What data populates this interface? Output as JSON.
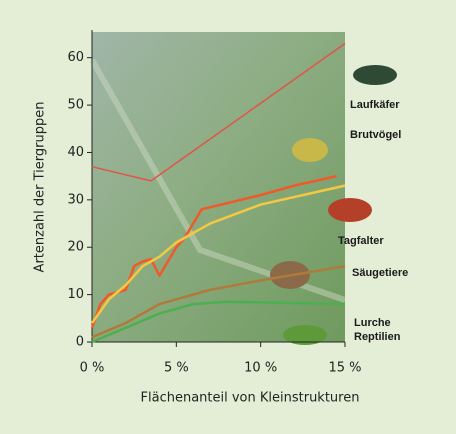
{
  "chart_data": {
    "type": "line",
    "x_label": "Flächenanteil von Kleinstrukturen",
    "y_label": "Artenzahl der Tiergruppen",
    "xlim": [
      0,
      15
    ],
    "ylim": [
      0,
      65
    ],
    "xticks": [
      {
        "value": 0,
        "label": "0 %"
      },
      {
        "value": 5,
        "label": "5 %"
      },
      {
        "value": 10,
        "label": "10 %"
      },
      {
        "value": 15,
        "label": "15 %"
      }
    ],
    "yticks": [
      0,
      10,
      20,
      30,
      40,
      50,
      60
    ],
    "series": [
      {
        "name": "Laufkäfer",
        "color": "#e0554a",
        "x": [
          0,
          3.5,
          15
        ],
        "values": [
          37,
          34,
          63
        ]
      },
      {
        "name": "Brutvögel",
        "color": "#f05a28",
        "x": [
          0,
          0.5,
          1,
          1.5,
          2,
          2.5,
          3,
          3.5,
          4,
          4.5,
          5,
          5.5,
          6,
          6.5,
          10,
          12,
          14.5
        ],
        "values": [
          3,
          8,
          10,
          10.5,
          11,
          16,
          17,
          17.5,
          14,
          17,
          20,
          22,
          25,
          28,
          31,
          33,
          35
        ]
      },
      {
        "name": "Tagfalter",
        "color": "#f5c842",
        "x": [
          0,
          1,
          2,
          3,
          4,
          5,
          7,
          10,
          15
        ],
        "values": [
          4,
          9,
          12,
          16,
          18,
          21,
          25,
          29,
          33
        ]
      },
      {
        "name": "Säugetiere",
        "color": "#b07a3a",
        "x": [
          0,
          2,
          4,
          7,
          10,
          15
        ],
        "values": [
          1,
          4,
          8,
          11,
          13,
          16
        ]
      },
      {
        "name": "Lurche Reptilien",
        "color": "#4caf50",
        "x": [
          0,
          2,
          4,
          6,
          8,
          15
        ],
        "values": [
          0,
          3,
          6,
          8,
          8.5,
          8
        ]
      }
    ]
  }
}
